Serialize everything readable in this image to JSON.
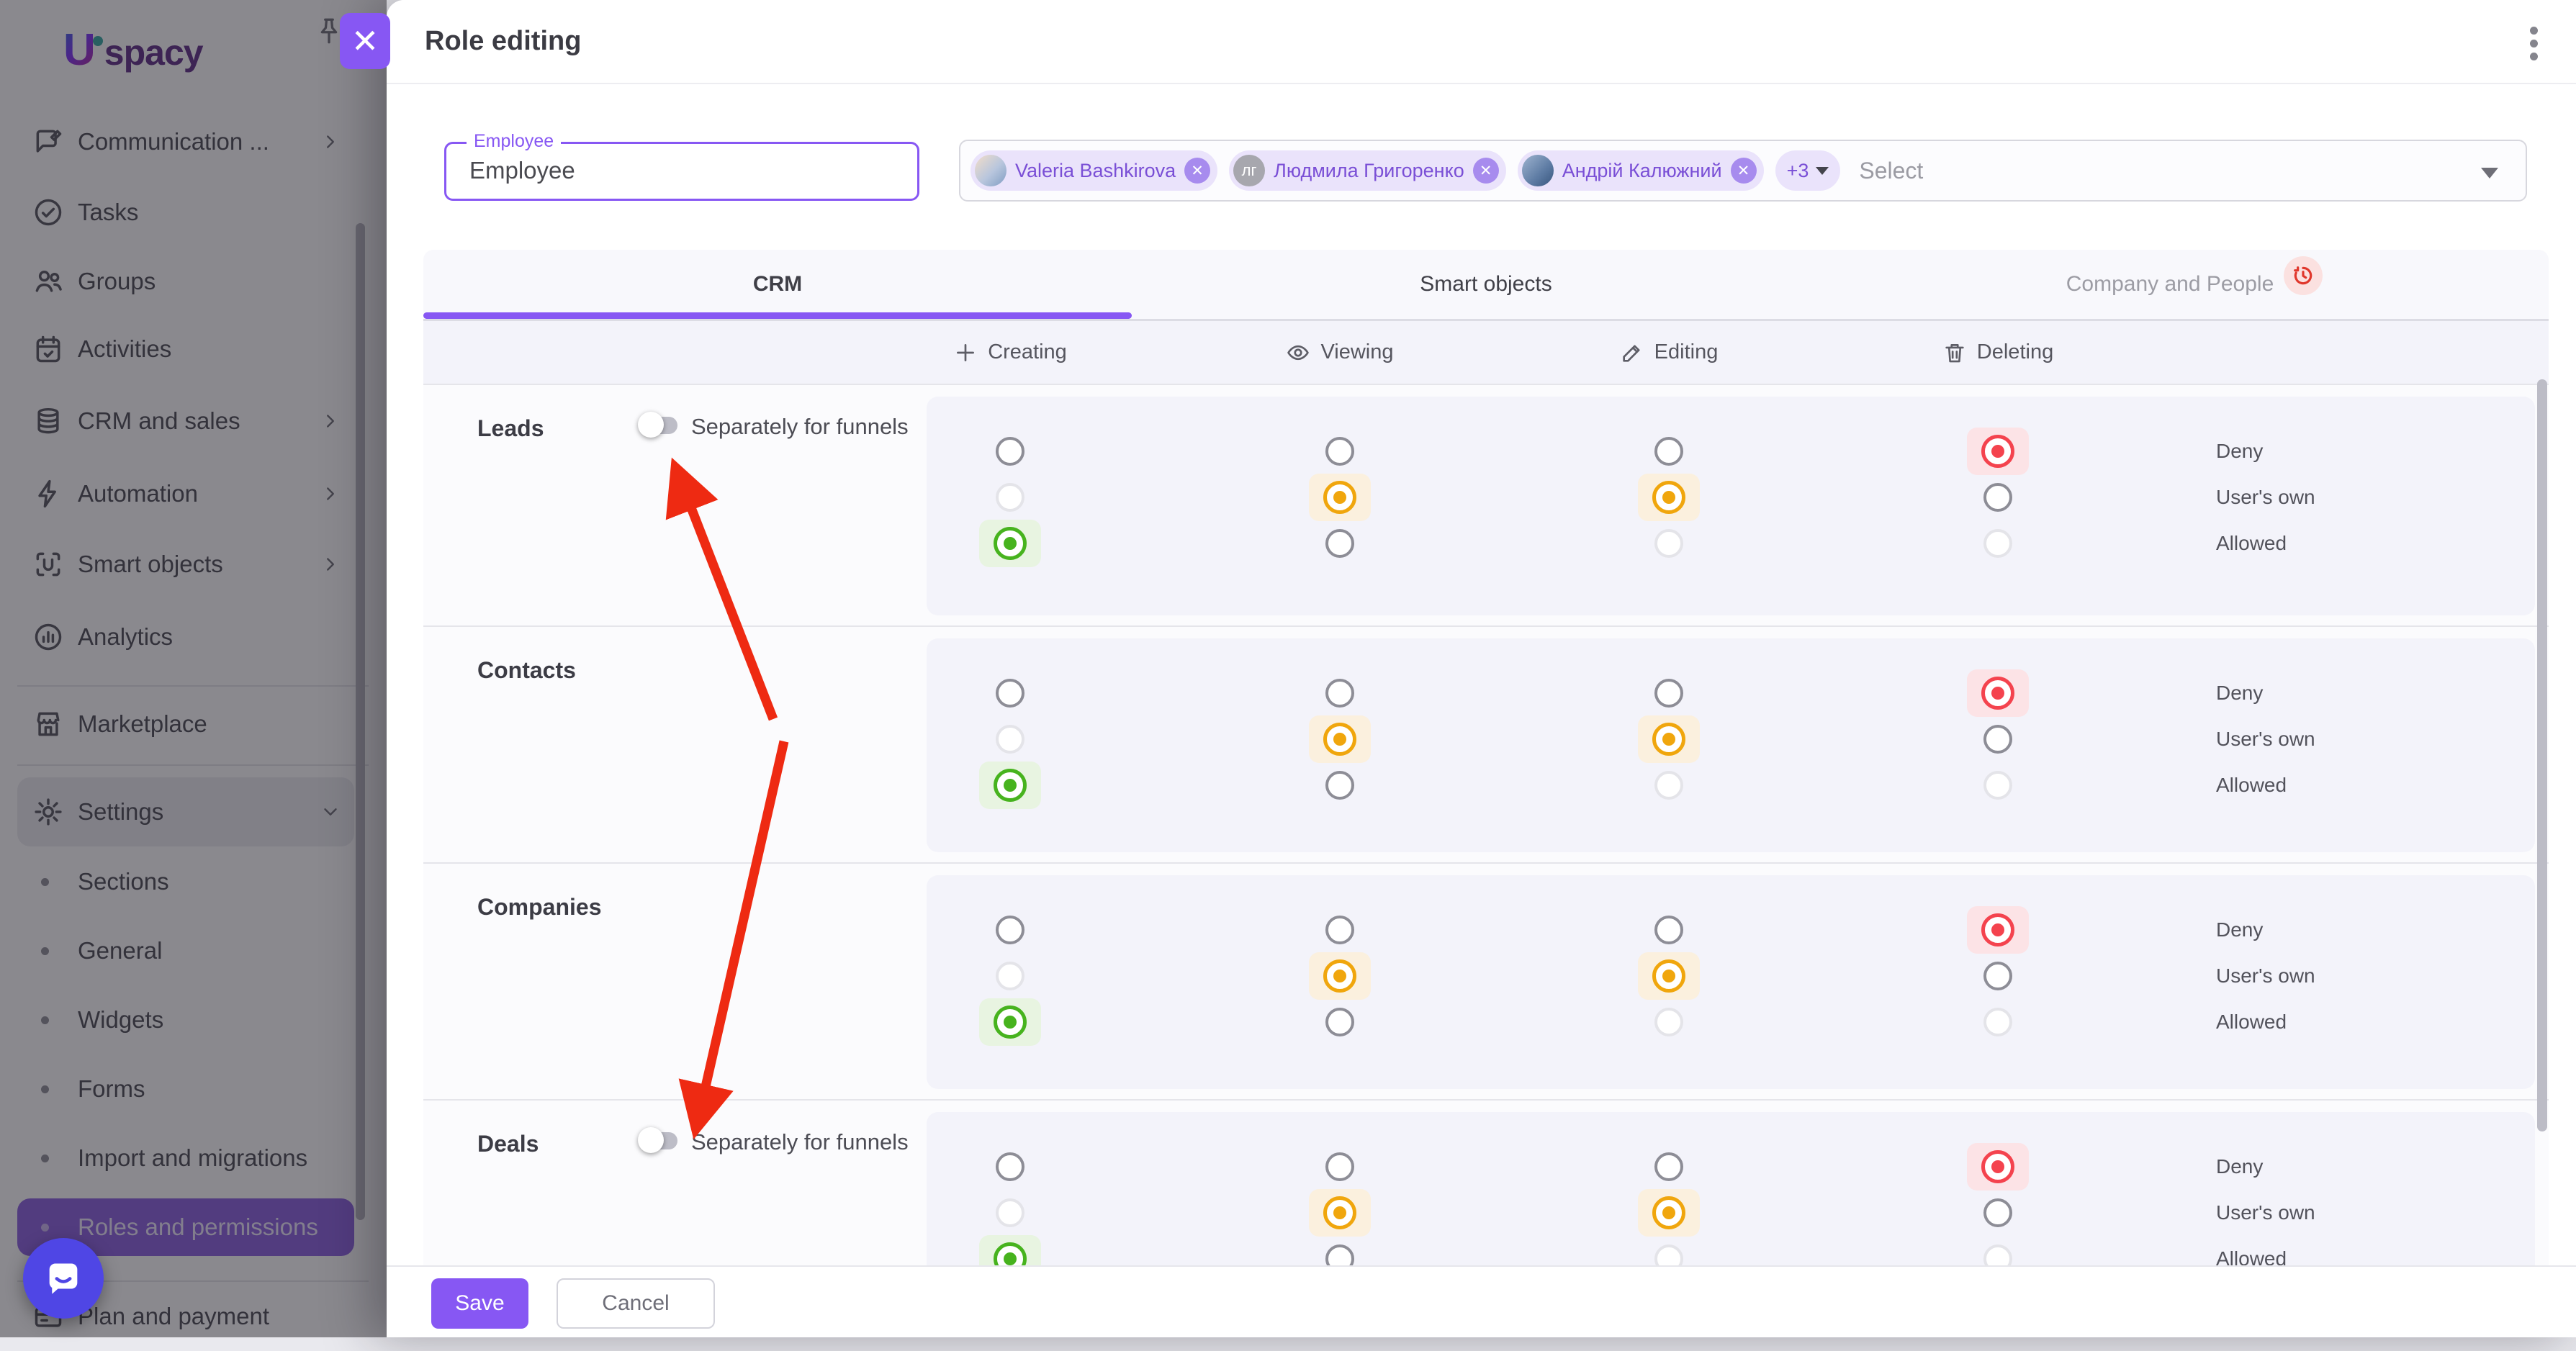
{
  "sidebar": {
    "logo": "Uspacy",
    "items": [
      {
        "label": "Communication ...",
        "icon": "communication-icon",
        "chevron": true
      },
      {
        "label": "Tasks",
        "icon": "tasks-icon"
      },
      {
        "label": "Groups",
        "icon": "groups-icon"
      },
      {
        "label": "Activities",
        "icon": "activities-icon"
      },
      {
        "label": "CRM and sales",
        "icon": "crm-icon",
        "chevron": true
      },
      {
        "label": "Automation",
        "icon": "automation-icon",
        "chevron": true
      },
      {
        "label": "Smart objects",
        "icon": "smart-objects-icon",
        "chevron": true
      },
      {
        "label": "Analytics",
        "icon": "analytics-icon"
      }
    ],
    "marketplace": {
      "label": "Marketplace",
      "icon": "marketplace-icon"
    },
    "settings": {
      "label": "Settings",
      "icon": "settings-icon",
      "expanded": true,
      "children": [
        {
          "label": "Sections"
        },
        {
          "label": "General"
        },
        {
          "label": "Widgets"
        },
        {
          "label": "Forms"
        },
        {
          "label": "Import and migrations"
        },
        {
          "label": "Roles and permissions",
          "active": true
        }
      ]
    },
    "plan": {
      "label": "Plan and payment",
      "icon": "plan-icon"
    }
  },
  "drawer": {
    "title": "Role editing",
    "employee_field": {
      "label": "Employee",
      "value": "Employee"
    },
    "member_select": {
      "chips": [
        {
          "name": "Valeria Bashkirova",
          "avatar": "photo-f"
        },
        {
          "name": "Людмила Григоренко",
          "avatar": "initials",
          "initials": "лг"
        },
        {
          "name": "Андрій Калюжний",
          "avatar": "photo-m"
        }
      ],
      "more": "+3",
      "placeholder": "Select"
    },
    "tabs": [
      {
        "label": "CRM",
        "active": true
      },
      {
        "label": "Smart objects"
      },
      {
        "label": "Company and People",
        "disabled": true,
        "badge": "history-clock-icon"
      }
    ],
    "columns": [
      {
        "label": "Creating",
        "icon": "plus-icon"
      },
      {
        "label": "Viewing",
        "icon": "eye-icon"
      },
      {
        "label": "Editing",
        "icon": "pencil-icon"
      },
      {
        "label": "Deleting",
        "icon": "trash-icon"
      }
    ],
    "levels": [
      "Deny",
      "User's own",
      "Allowed"
    ],
    "disabled_options": {
      "Creating": [
        "User's own"
      ],
      "Viewing": [],
      "Editing": [
        "Allowed"
      ],
      "Deleting": [
        "Allowed"
      ]
    },
    "rows": [
      {
        "label": "Leads",
        "separate_funnels": {
          "label": "Separately for funnels",
          "enabled": false
        },
        "permissions": {
          "Creating": "Allowed",
          "Viewing": "User's own",
          "Editing": "User's own",
          "Deleting": "Deny"
        }
      },
      {
        "label": "Contacts",
        "permissions": {
          "Creating": "Allowed",
          "Viewing": "User's own",
          "Editing": "User's own",
          "Deleting": "Deny"
        }
      },
      {
        "label": "Companies",
        "permissions": {
          "Creating": "Allowed",
          "Viewing": "User's own",
          "Editing": "User's own",
          "Deleting": "Deny"
        }
      },
      {
        "label": "Deals",
        "separate_funnels": {
          "label": "Separately for funnels",
          "enabled": false
        },
        "permissions": {
          "Creating": "Allowed",
          "Viewing": "User's own",
          "Editing": "User's own",
          "Deleting": "Deny"
        }
      }
    ],
    "footer": {
      "save": "Save",
      "cancel": "Cancel"
    }
  },
  "colors": {
    "accent": "#8757f3",
    "deny": "#f4434e",
    "deny_bg": "#fce3e6",
    "users_own": "#f0a60d",
    "users_own_bg": "#fbf0de",
    "allowed": "#47b31e",
    "allowed_bg": "#e8f4e1",
    "chip_bg": "#eae3fb",
    "chip_text": "#7a4fd6",
    "chip_close": "#a78bee",
    "annotation_arrow": "#ee2a12"
  }
}
